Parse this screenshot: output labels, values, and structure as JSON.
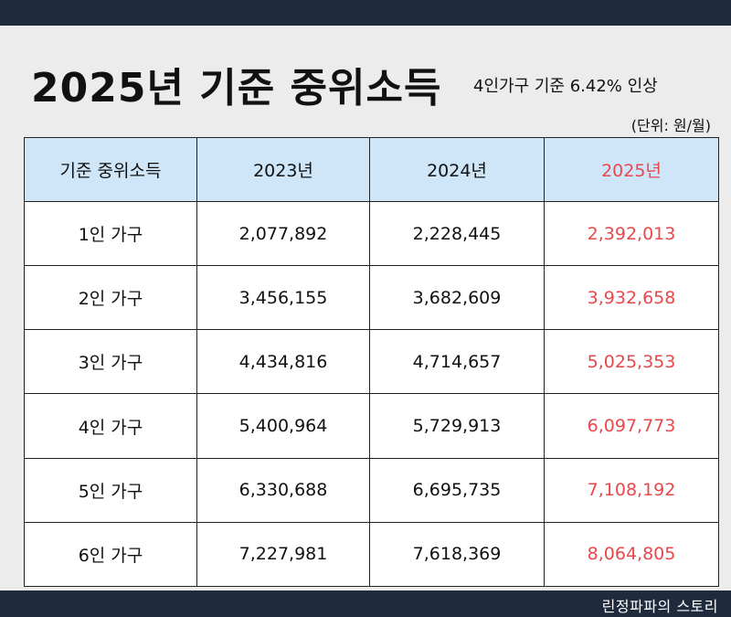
{
  "header": {
    "title": "2025년 기준 중위소득",
    "subtitle": "4인가구 기준 6.42% 인상",
    "unit": "(단위: 원/월)"
  },
  "watermark": "린정파파",
  "table": {
    "columns": [
      "기준 중위소득",
      "2023년",
      "2024년",
      "2025년"
    ],
    "rows": [
      [
        "1인 가구",
        "2,077,892",
        "2,228,445",
        "2,392,013"
      ],
      [
        "2인 가구",
        "3,456,155",
        "3,682,609",
        "3,932,658"
      ],
      [
        "3인 가구",
        "4,434,816",
        "4,714,657",
        "5,025,353"
      ],
      [
        "4인 가구",
        "5,400,964",
        "5,729,913",
        "6,097,773"
      ],
      [
        "5인 가구",
        "6,330,688",
        "6,695,735",
        "7,108,192"
      ],
      [
        "6인 가구",
        "7,227,981",
        "7,618,369",
        "8,064,805"
      ]
    ]
  },
  "footer": {
    "credit": "린정파파의 스토리"
  },
  "colors": {
    "accent": "#e8474b",
    "header_fill": "#cfe6f8",
    "bar": "#1f2b3d"
  }
}
